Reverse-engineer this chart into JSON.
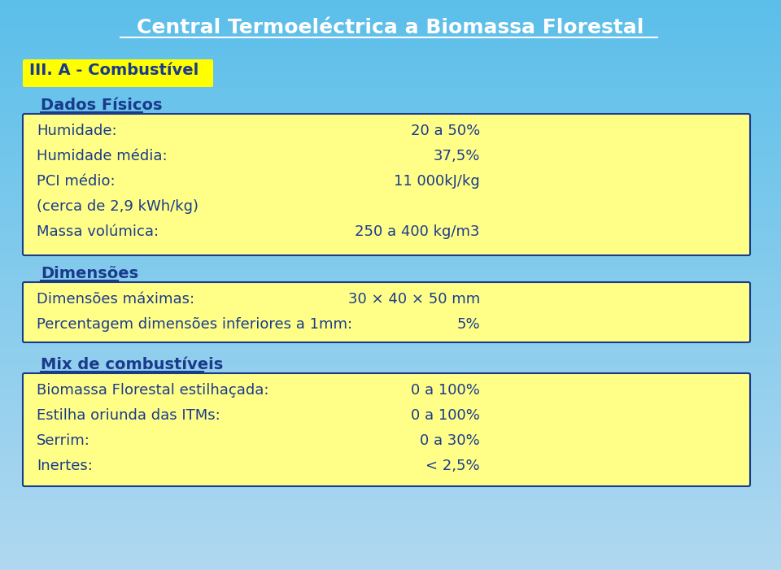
{
  "title": "Central Termoeléctrica a Biomassa Florestal",
  "title_color": "#FFFFFF",
  "title_fontsize": 18,
  "background_top": "#5BBFEA",
  "background_bottom": "#B0D8F0",
  "section_header_bg": "#FFFF00",
  "section_header_color": "#1A3A8C",
  "box_bg": "#FFFF88",
  "box_border": "#1A3A8C",
  "text_color": "#1A3A8C",
  "section1_header": "III. A - Combustível",
  "subsection1": "Dados Físicos",
  "dados_fisicos_rows": [
    [
      "Humidade:",
      "20 a 50%"
    ],
    [
      "Humidade média:",
      "37,5%"
    ],
    [
      "PCI médio:",
      "11 000kJ/kg"
    ],
    [
      "(cerca de 2,9 kWh/kg)",
      ""
    ],
    [
      "Massa volúmica:",
      "250 a 400 kg/m3"
    ]
  ],
  "subsection2": "Dimensões",
  "dimensoes_rows": [
    [
      "Dimensões máximas:",
      "30 × 40 × 50 mm"
    ],
    [
      "Percentagem dimensões inferiores a 1mm:",
      "5%"
    ]
  ],
  "subsection3": "Mix de combustíveis",
  "mix_rows": [
    [
      "Biomassa Florestal estilhaçada:",
      "0 a 100%"
    ],
    [
      "Estilha oriunda das ITMs:",
      "0 a 100%"
    ],
    [
      "Serrim:",
      "0 a 30%"
    ],
    [
      "Inertes:",
      "< 2,5%"
    ]
  ]
}
